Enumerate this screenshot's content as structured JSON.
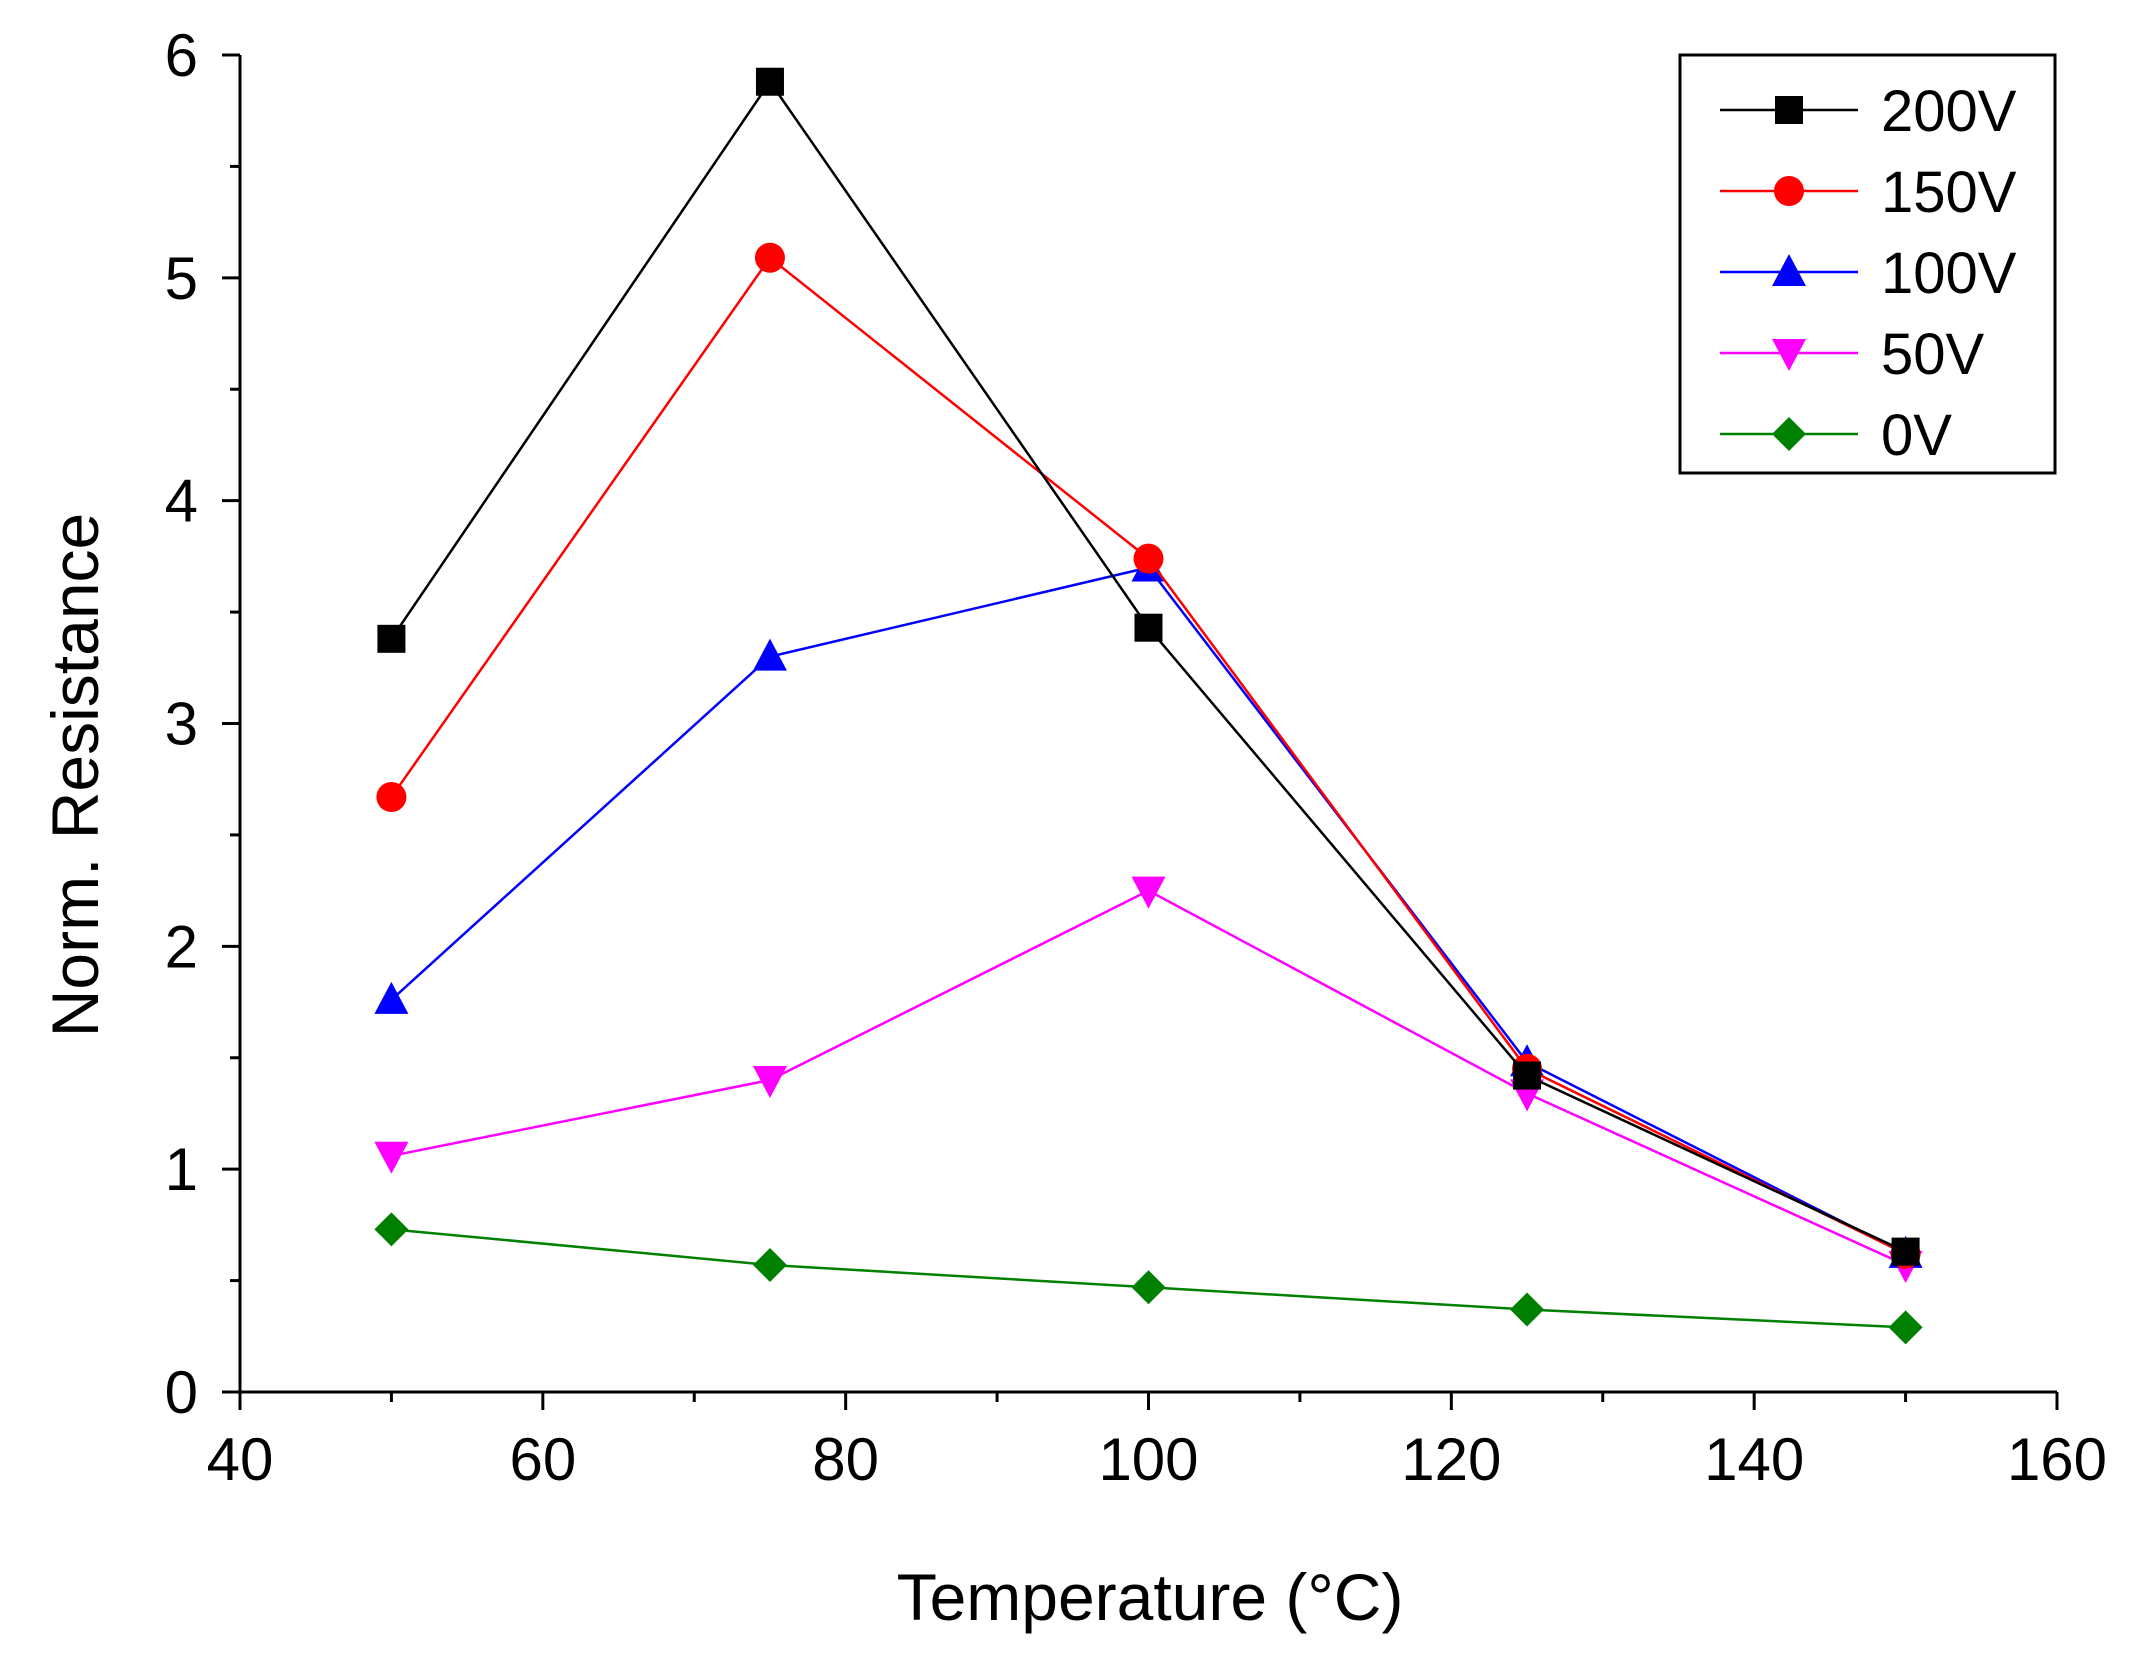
{
  "chart_data": {
    "type": "line",
    "title": "",
    "xlabel": "Temperature (°C)",
    "ylabel": "Norm. Resistance",
    "xlim": [
      40,
      160
    ],
    "ylim": [
      0,
      6
    ],
    "xticks": [
      40,
      60,
      80,
      100,
      120,
      140,
      160
    ],
    "yticks": [
      0,
      1,
      2,
      3,
      4,
      5,
      6
    ],
    "x_tick_labels": [
      "40",
      "60",
      "80",
      "100",
      "120",
      "140",
      "160"
    ],
    "y_tick_labels": [
      "0",
      "1",
      "2",
      "3",
      "4",
      "5",
      "6"
    ],
    "x": [
      50,
      75,
      100,
      125,
      150
    ],
    "grid": false,
    "legend_position": "top-right",
    "series": [
      {
        "name": "200V",
        "color": "#000000",
        "marker": "square",
        "values": [
          3.38,
          5.88,
          3.43,
          1.42,
          0.63
        ]
      },
      {
        "name": "150V",
        "color": "#ff0000",
        "marker": "circle",
        "values": [
          2.67,
          5.09,
          3.74,
          1.45,
          0.62
        ]
      },
      {
        "name": "100V",
        "color": "#0000ff",
        "marker": "triangle-up",
        "values": [
          1.76,
          3.3,
          3.7,
          1.48,
          0.62
        ]
      },
      {
        "name": "50V",
        "color": "#ff00ff",
        "marker": "triangle-down",
        "values": [
          1.06,
          1.4,
          2.25,
          1.34,
          0.57
        ]
      },
      {
        "name": "0V",
        "color": "#008000",
        "marker": "diamond",
        "values": [
          0.73,
          0.57,
          0.47,
          0.37,
          0.29
        ]
      }
    ]
  }
}
